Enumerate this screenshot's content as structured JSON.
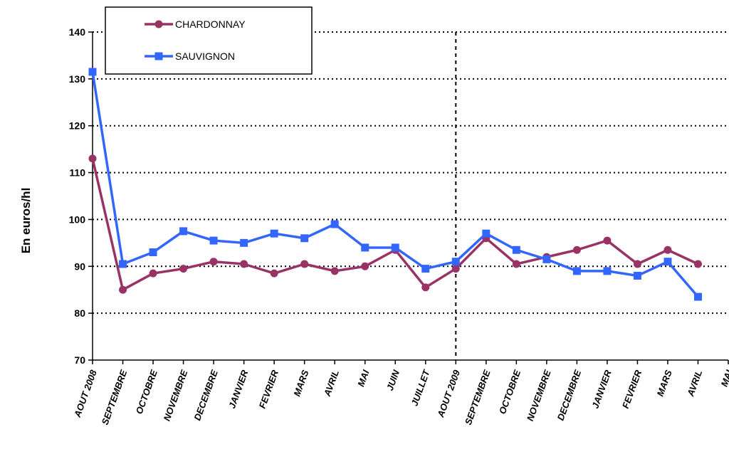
{
  "chart_data": {
    "type": "line",
    "ylabel": "En euros/hl",
    "xlabel": "",
    "ylim": [
      70,
      140
    ],
    "yticks": [
      70,
      80,
      90,
      100,
      110,
      120,
      130,
      140
    ],
    "categories": [
      "AOUT 2008",
      "SEPTEMBRE",
      "OCTOBRE",
      "NOVEMBRE",
      "DECEMBRE",
      "JANVIER",
      "FEVRIER",
      "MARS",
      "AVRIL",
      "MAI",
      "JUIN",
      "JUILLET",
      "AOUT 2009",
      "SEPTEMBRE",
      "OCTOBRE",
      "NOVEMBRE",
      "DECEMBRE",
      "JANVIER",
      "FEVRIER",
      "MARS",
      "AVRIL",
      "MAI"
    ],
    "series": [
      {
        "name": "CHARDONNAY",
        "color": "#993366",
        "marker": "circle",
        "values": [
          113,
          85,
          88.5,
          89.5,
          91,
          90.5,
          88.5,
          90.5,
          89,
          90,
          93.5,
          85.5,
          89.5,
          96,
          90.5,
          92,
          93.5,
          95.5,
          90.5,
          93.5,
          90.5,
          null
        ]
      },
      {
        "name": "SAUVIGNON",
        "color": "#3366FF",
        "marker": "square",
        "values": [
          131.5,
          90.5,
          93,
          97.5,
          95.5,
          95,
          97,
          96,
          99,
          94,
          94,
          89.5,
          91,
          97,
          93.5,
          91.5,
          89,
          89,
          88,
          91,
          83.5,
          null
        ]
      }
    ],
    "grid": "horizontal dotted",
    "legend": "top-left",
    "reference_line_after": "AOUT 2009"
  }
}
